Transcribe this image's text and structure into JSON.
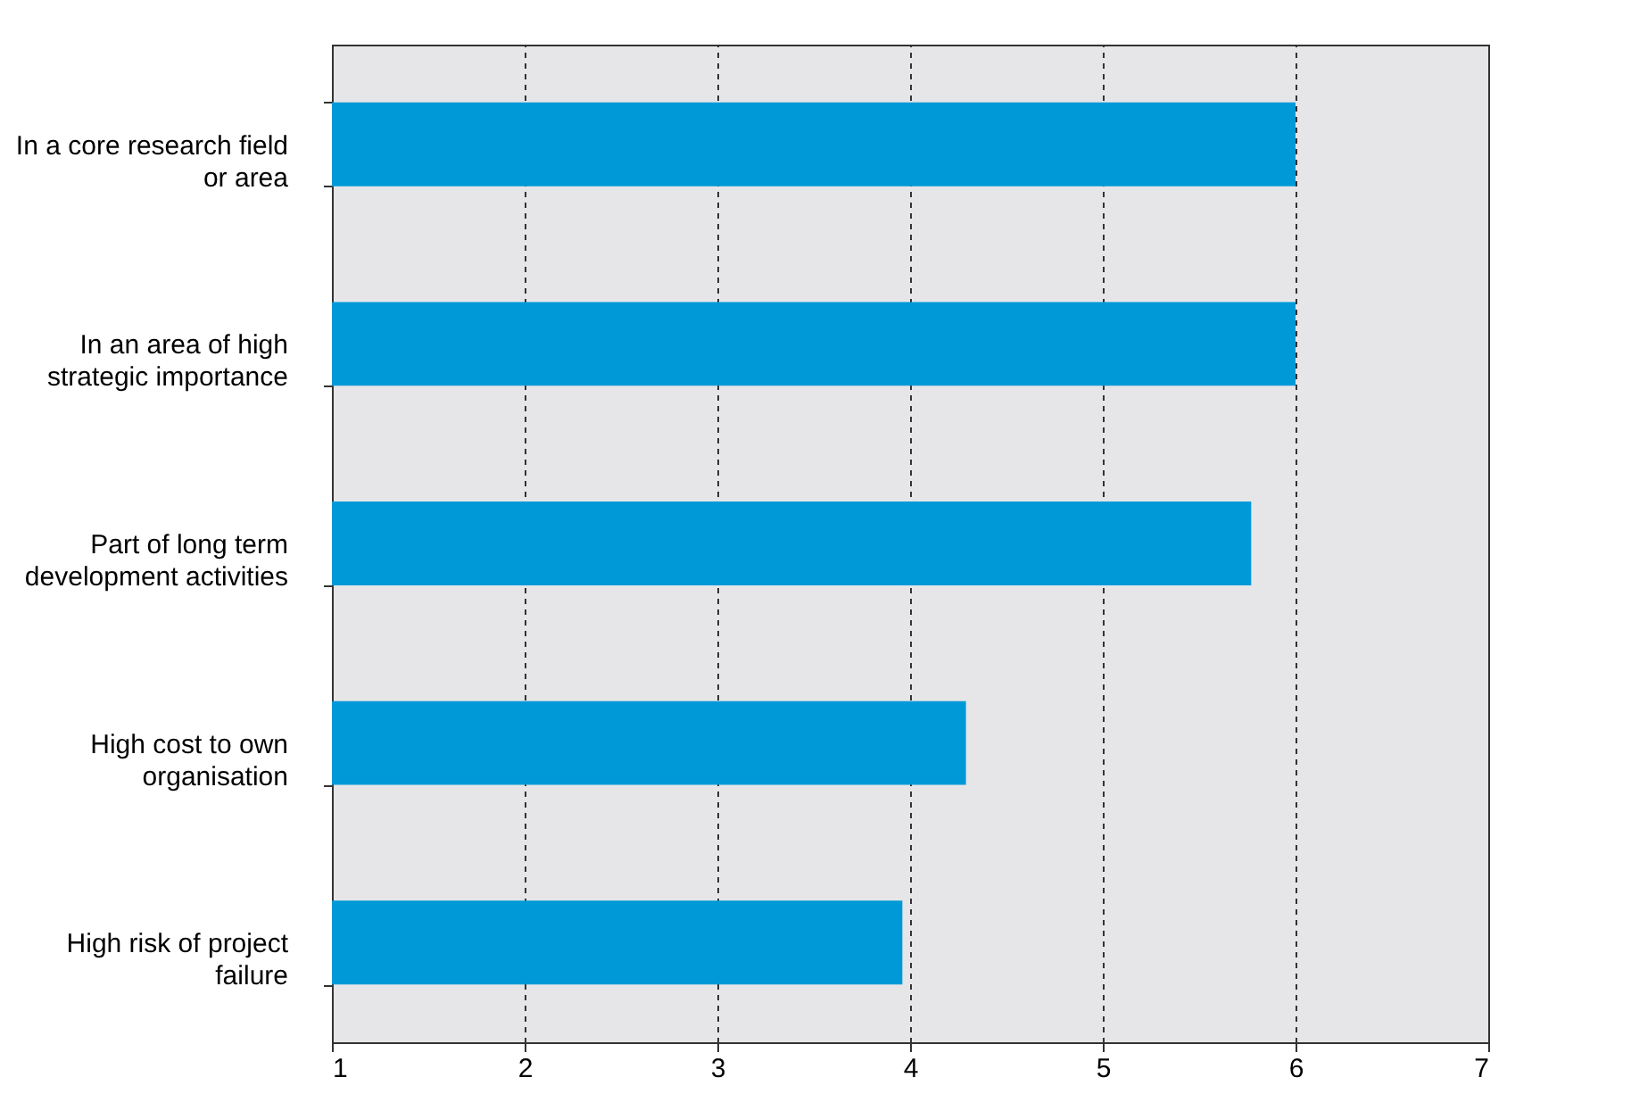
{
  "chart_data": {
    "type": "bar",
    "orientation": "horizontal",
    "categories": [
      "In a core research field or area",
      "In an area of high strategic importance",
      "Part of long term development activities",
      "High cost to own organisation",
      "High risk of project failure"
    ],
    "values": [
      6.0,
      6.0,
      5.77,
      4.29,
      3.96
    ],
    "color": "#0099d8",
    "xlim": [
      1,
      7
    ],
    "xticks": [
      1,
      2,
      3,
      4,
      5,
      6,
      7
    ],
    "grid": "x"
  }
}
